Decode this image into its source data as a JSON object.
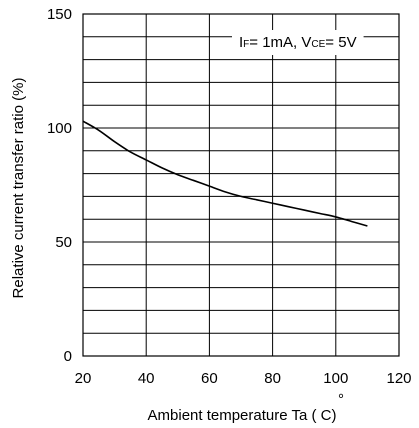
{
  "chart_data": {
    "type": "line",
    "xlabel": "Ambient temperature Ta ( C)",
    "degree_mark": "°",
    "ylabel": "Relative current transfer ratio (%)",
    "xlim": [
      20,
      120
    ],
    "ylim": [
      0,
      150
    ],
    "x_ticks": [
      "20",
      "40",
      "60",
      "80",
      "100",
      "120"
    ],
    "y_ticks": [
      "0",
      "50",
      "100",
      "150"
    ],
    "grid": true,
    "annotation": {
      "p1": "I",
      "s1": "F",
      "p2": "= 1mA, V",
      "s2": "CE",
      "p3": "= 5V"
    },
    "series": [
      {
        "x": [
          20,
          25,
          30,
          35,
          40,
          45,
          50,
          55,
          60,
          65,
          70,
          75,
          80,
          85,
          90,
          95,
          100,
          105,
          110
        ],
        "values": [
          103,
          99,
          94,
          89.5,
          86,
          82.5,
          79.5,
          77,
          74.5,
          72,
          70,
          68.5,
          67,
          65.5,
          64,
          62.5,
          61,
          59,
          57
        ]
      }
    ]
  }
}
